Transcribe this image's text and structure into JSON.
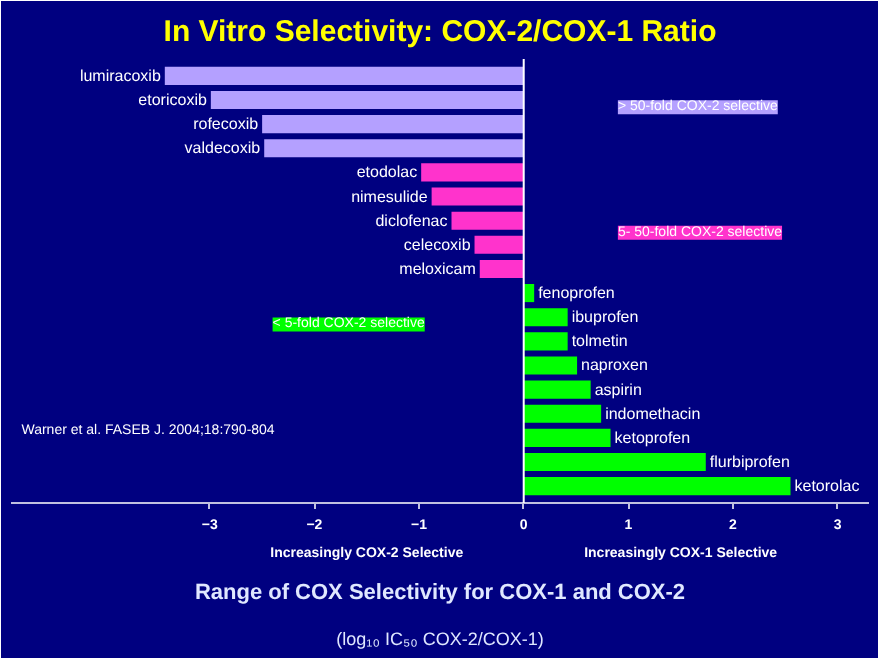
{
  "chart_data": {
    "type": "bar",
    "orientation": "horizontal",
    "title": "In Vitro Selectivity: COX-2/COX-1 Ratio",
    "xlabel": "Range of COX Selectivity for COX-1 and COX-2",
    "categories": [
      "lumiracoxib",
      "etoricoxib",
      "rofecoxib",
      "valdecoxib",
      "etodolac",
      "nimesulide",
      "diclofenac",
      "celecoxib",
      "meloxicam",
      "fenoprofen",
      "ibuprofen",
      "tolmetin",
      "naproxen",
      "aspirin",
      "indomethacin",
      "ketoprofen",
      "flurbiprofen",
      "ketorolac"
    ],
    "values": [
      -3.43,
      -2.99,
      -2.5,
      -2.48,
      -0.98,
      -0.88,
      -0.69,
      -0.47,
      -0.42,
      0.1,
      0.42,
      0.42,
      0.51,
      0.64,
      0.74,
      0.83,
      1.74,
      2.55
    ],
    "colors": [
      "#b4a0ff",
      "#b4a0ff",
      "#b4a0ff",
      "#b4a0ff",
      "#ff33cc",
      "#ff33cc",
      "#ff33cc",
      "#ff33cc",
      "#ff33cc",
      "#00ff00",
      "#00ff00",
      "#00ff00",
      "#00ff00",
      "#00ff00",
      "#00ff00",
      "#00ff00",
      "#00ff00",
      "#00ff00"
    ],
    "xlim": [
      -4.9,
      3.3
    ],
    "xticks": [
      -3,
      -2,
      -1,
      0,
      1,
      2,
      3
    ],
    "grid": false,
    "ref_lines": [
      {
        "axis": "x",
        "value": 0,
        "color": "#ffffff"
      }
    ],
    "annotations": [
      "> 50-fold COX-2 selective",
      "5- 50-fold COX-2 selective",
      "< 5-fold COX-2 selective",
      "Warner et al. FASEB J. 2004;18:790-804",
      "Increasingly COX-2 Selective",
      "Increasingly COX-1 Selective",
      "(log₁₀ IC₅₀ COX-2/COX-1)"
    ]
  }
}
